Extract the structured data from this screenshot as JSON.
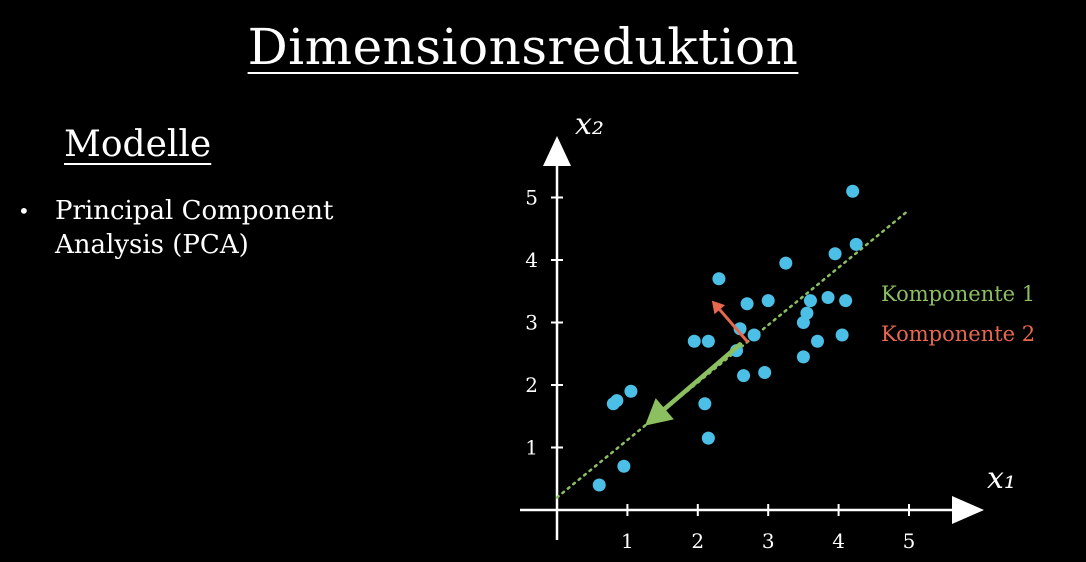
{
  "slide": {
    "title": "Dimensionsreduktion",
    "subtitle": "Modelle",
    "bullets": [
      {
        "lines": [
          "Principal Component",
          "Analysis (PCA)"
        ]
      }
    ]
  },
  "chart_data": {
    "type": "scatter",
    "xlabel": "x₁",
    "ylabel": "x₂",
    "xlim": [
      0,
      5.8
    ],
    "ylim": [
      0,
      5.8
    ],
    "x_ticks": [
      "1",
      "2",
      "3",
      "4",
      "5"
    ],
    "y_ticks": [
      "1",
      "2",
      "3",
      "4",
      "5"
    ],
    "legend": [
      {
        "label": "Komponente 1",
        "color": "#8cbf5f"
      },
      {
        "label": "Komponente 2",
        "color": "#e8684f"
      }
    ],
    "point_color": "#4cbfe6",
    "points": [
      [
        0.6,
        0.4
      ],
      [
        0.95,
        0.7
      ],
      [
        0.8,
        1.7
      ],
      [
        0.85,
        1.75
      ],
      [
        1.05,
        1.9
      ],
      [
        1.95,
        2.7
      ],
      [
        2.1,
        1.7
      ],
      [
        2.15,
        1.15
      ],
      [
        2.15,
        2.7
      ],
      [
        2.3,
        3.7
      ],
      [
        2.55,
        2.55
      ],
      [
        2.6,
        2.9
      ],
      [
        2.65,
        2.15
      ],
      [
        2.7,
        3.3
      ],
      [
        2.8,
        2.8
      ],
      [
        2.95,
        2.2
      ],
      [
        3.0,
        3.35
      ],
      [
        3.25,
        3.95
      ],
      [
        3.5,
        3.0
      ],
      [
        3.5,
        2.45
      ],
      [
        3.55,
        3.15
      ],
      [
        3.6,
        3.35
      ],
      [
        3.7,
        2.7
      ],
      [
        3.85,
        3.4
      ],
      [
        3.95,
        4.1
      ],
      [
        4.05,
        2.8
      ],
      [
        4.1,
        3.35
      ],
      [
        4.2,
        5.1
      ],
      [
        4.25,
        4.25
      ]
    ],
    "line_komponente_1": {
      "from": [
        0.0,
        0.2
      ],
      "to": [
        5.0,
        4.8
      ]
    },
    "arrow_komponente_1": {
      "from": [
        2.6,
        2.65
      ],
      "to": [
        1.25,
        1.35
      ]
    },
    "arrow_komponente_2": {
      "from": [
        2.7,
        2.7
      ],
      "to": [
        2.2,
        3.35
      ]
    }
  }
}
